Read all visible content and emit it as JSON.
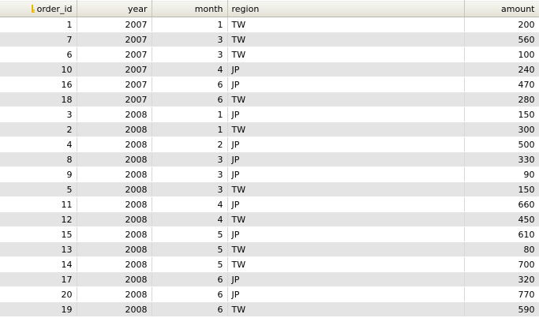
{
  "columns": [
    {
      "key": "order_id",
      "label": "order_id",
      "align": "right",
      "primary_key": true
    },
    {
      "key": "year",
      "label": "year",
      "align": "right"
    },
    {
      "key": "month",
      "label": "month",
      "align": "right"
    },
    {
      "key": "region",
      "label": "region",
      "align": "left"
    },
    {
      "key": "amount",
      "label": "amount",
      "align": "right"
    }
  ],
  "rows": [
    {
      "order_id": "1",
      "year": "2007",
      "month": "1",
      "region": "TW",
      "amount": "200"
    },
    {
      "order_id": "7",
      "year": "2007",
      "month": "3",
      "region": "TW",
      "amount": "560"
    },
    {
      "order_id": "6",
      "year": "2007",
      "month": "3",
      "region": "TW",
      "amount": "100"
    },
    {
      "order_id": "10",
      "year": "2007",
      "month": "4",
      "region": "JP",
      "amount": "240"
    },
    {
      "order_id": "16",
      "year": "2007",
      "month": "6",
      "region": "JP",
      "amount": "470"
    },
    {
      "order_id": "18",
      "year": "2007",
      "month": "6",
      "region": "TW",
      "amount": "280"
    },
    {
      "order_id": "3",
      "year": "2008",
      "month": "1",
      "region": "JP",
      "amount": "150"
    },
    {
      "order_id": "2",
      "year": "2008",
      "month": "1",
      "region": "TW",
      "amount": "300"
    },
    {
      "order_id": "4",
      "year": "2008",
      "month": "2",
      "region": "JP",
      "amount": "500"
    },
    {
      "order_id": "8",
      "year": "2008",
      "month": "3",
      "region": "JP",
      "amount": "330"
    },
    {
      "order_id": "9",
      "year": "2008",
      "month": "3",
      "region": "JP",
      "amount": "90"
    },
    {
      "order_id": "5",
      "year": "2008",
      "month": "3",
      "region": "TW",
      "amount": "150"
    },
    {
      "order_id": "11",
      "year": "2008",
      "month": "4",
      "region": "JP",
      "amount": "660"
    },
    {
      "order_id": "12",
      "year": "2008",
      "month": "4",
      "region": "TW",
      "amount": "450"
    },
    {
      "order_id": "15",
      "year": "2008",
      "month": "5",
      "region": "JP",
      "amount": "610"
    },
    {
      "order_id": "13",
      "year": "2008",
      "month": "5",
      "region": "TW",
      "amount": "80"
    },
    {
      "order_id": "14",
      "year": "2008",
      "month": "5",
      "region": "TW",
      "amount": "700"
    },
    {
      "order_id": "17",
      "year": "2008",
      "month": "6",
      "region": "JP",
      "amount": "320"
    },
    {
      "order_id": "20",
      "year": "2008",
      "month": "6",
      "region": "JP",
      "amount": "770"
    },
    {
      "order_id": "19",
      "year": "2008",
      "month": "6",
      "region": "TW",
      "amount": "590"
    }
  ],
  "icons": {
    "primary_key": "key-icon"
  },
  "colors": {
    "header_bg": "#ece9d8",
    "row_alt_bg": "#e4e4e4",
    "row_bg": "#ffffff",
    "key_icon": "#e8b800"
  }
}
